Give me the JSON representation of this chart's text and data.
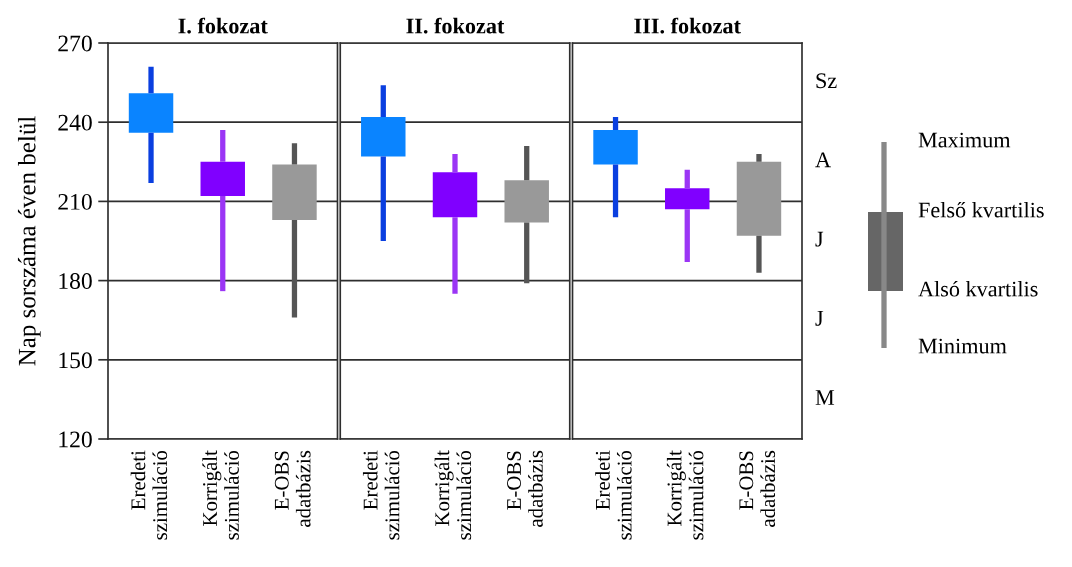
{
  "chart_data": [
    {
      "type": "box",
      "title": "I. fokozat",
      "ylabel": "Nap sorszáma éven belül",
      "categories": [
        "Eredeti\nszimuláció",
        "Korrigált\nszimuláció",
        "E-OBS\nadatbázis"
      ],
      "boxes": [
        {
          "low": 217,
          "q1": 236,
          "q3": 251,
          "high": 261
        },
        {
          "low": 176,
          "q1": 212,
          "q3": 225,
          "high": 237
        },
        {
          "low": 166,
          "q1": 203,
          "q3": 224,
          "high": 232
        }
      ],
      "colors": [
        [
          "#0a84ff",
          "#0a3fe0"
        ],
        [
          "#8000ff",
          "#9b35f5"
        ],
        [
          "#999999",
          "#555555"
        ]
      ],
      "ylim": [
        120,
        270
      ],
      "yticks": [
        120,
        150,
        180,
        210,
        240,
        270
      ],
      "grid": "y"
    },
    {
      "type": "box",
      "title": "II. fokozat",
      "categories": [
        "Eredeti\nszimuláció",
        "Korrigált\nszimuláció",
        "E-OBS\nadatbázis"
      ],
      "boxes": [
        {
          "low": 195,
          "q1": 227,
          "q3": 242,
          "high": 254
        },
        {
          "low": 175,
          "q1": 204,
          "q3": 221,
          "high": 228
        },
        {
          "low": 179,
          "q1": 202,
          "q3": 218,
          "high": 231
        }
      ],
      "colors": [
        [
          "#0a84ff",
          "#0a3fe0"
        ],
        [
          "#8000ff",
          "#9b35f5"
        ],
        [
          "#999999",
          "#555555"
        ]
      ],
      "ylim": [
        120,
        270
      ],
      "yticks": [
        120,
        150,
        180,
        210,
        240,
        270
      ],
      "grid": "y",
      "tick_labels": "x"
    },
    {
      "type": "box",
      "title": "III. fokozat",
      "categories": [
        "Eredeti\nszimuláció",
        "Korrigált\nszimuláció",
        "E-OBS\nadatbázis"
      ],
      "boxes": [
        {
          "low": 204,
          "q1": 224,
          "q3": 237,
          "high": 242
        },
        {
          "low": 187,
          "q1": 207,
          "q3": 215,
          "high": 222
        },
        {
          "low": 183,
          "q1": 197,
          "q3": 225,
          "high": 228
        }
      ],
      "colors": [
        [
          "#0a84ff",
          "#0a3fe0"
        ],
        [
          "#8000ff",
          "#9b35f5"
        ],
        [
          "#999999",
          "#555555"
        ]
      ],
      "ylim": [
        120,
        270
      ],
      "yticks": [
        120,
        150,
        180,
        210,
        240,
        270
      ],
      "grid": "y",
      "tick_labels": "x",
      "annotations": [
        "Sz",
        "A",
        "J",
        "J",
        "M",
        "Maximum",
        "Felső kvartilis",
        "Alsó kvartilis",
        "Minimum"
      ]
    }
  ]
}
